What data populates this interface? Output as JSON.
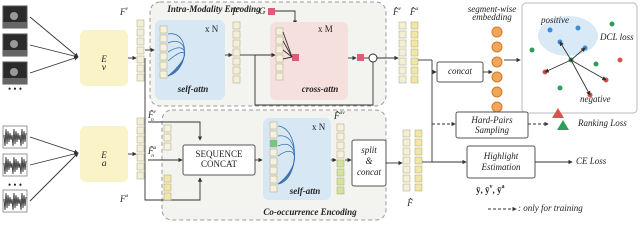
{
  "encoders": {
    "video": {
      "base": "E",
      "sub": "v"
    },
    "audio": {
      "base": "E",
      "sub": "a"
    }
  },
  "features": {
    "video": {
      "base": "F",
      "sup": "v"
    },
    "audio": {
      "base": "F",
      "sup": "a"
    }
  },
  "intra": {
    "title": "Intra-Modality Encoding",
    "self_attn": {
      "repeat": "x N",
      "label": "self-attn"
    },
    "output": {
      "base": "F̂",
      "sup": "v"
    },
    "guide": "G",
    "cross_attn": {
      "repeat": "x M",
      "label": "cross-attn"
    }
  },
  "outputs": [
    {
      "base": "F̂",
      "sup": "v"
    },
    {
      "base": "F̂",
      "sup": "a"
    }
  ],
  "concat": "concat",
  "embedding": [
    "segment-wise",
    "embedding"
  ],
  "dcl": {
    "positive": "positive",
    "negative": "negative",
    "loss": "DCL loss"
  },
  "sampling": [
    "Hard-Pairs",
    "Sampling"
  ],
  "ranking": "Ranking Loss",
  "highlight": [
    "Highlight",
    "Estimation"
  ],
  "ce": "CE Loss",
  "predictions": [
    {
      "base": "ȳ, ȳ",
      "sup": "v"
    },
    {
      "base": ", ȳ",
      "sup": "a"
    }
  ],
  "co": {
    "title": "Co-occurrence Encoding",
    "inputs": [
      {
        "base": "F̃",
        "sup": "v",
        "sub": "n"
      },
      {
        "base": "F̃",
        "sup": "a",
        "sub": "n"
      }
    ],
    "sequence_concat": [
      "SEQUENCE",
      "CONCAT"
    ],
    "self_attn": {
      "repeat": "x N",
      "label": "self-attn"
    },
    "joint": {
      "base": "F̂",
      "sup": "av"
    },
    "split_concat": [
      "split",
      "&",
      "concat"
    ]
  },
  "fused": {
    "base": "F̂"
  },
  "legend": ": only for training"
}
